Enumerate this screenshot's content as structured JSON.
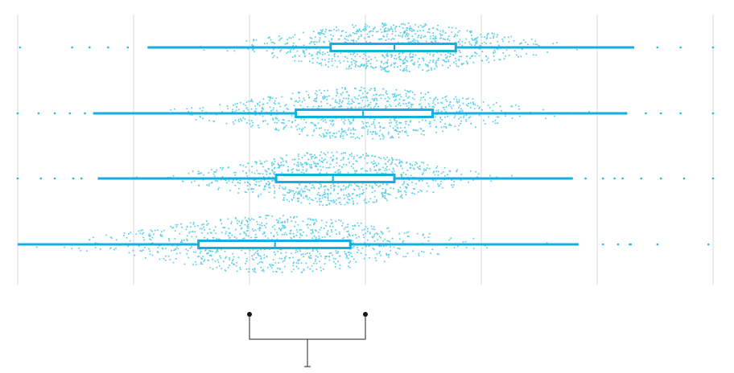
{
  "chart_data": {
    "type": "box-violin",
    "orientation": "horizontal",
    "xlim": [
      0,
      6
    ],
    "gridlines_x": [
      0,
      1,
      2,
      3,
      4,
      5,
      6
    ],
    "tick_labels_shown": false,
    "grid": true,
    "legend": "none",
    "colors": {
      "series": "#14aee0",
      "points": "#5fd0e6",
      "grid": "#d8d8d8",
      "bracket": "#222222"
    },
    "series": [
      {
        "whisker_low": 1.12,
        "q1": 2.7,
        "median": 3.25,
        "q3": 3.78,
        "whisker_high": 5.32,
        "outliers": [
          0.02,
          0.47,
          0.62,
          0.78,
          0.95,
          5.52,
          5.72,
          6.0
        ],
        "density_width": 0.26
      },
      {
        "whisker_low": 0.65,
        "q1": 2.4,
        "median": 2.98,
        "q3": 3.58,
        "whisker_high": 5.26,
        "outliers": [
          0.0,
          0.18,
          0.32,
          0.45,
          0.58,
          5.42,
          5.55,
          5.72,
          6.0
        ],
        "density_width": 0.27
      },
      {
        "whisker_low": 0.69,
        "q1": 2.23,
        "median": 2.72,
        "q3": 3.25,
        "whisker_high": 4.79,
        "outliers": [
          0.0,
          0.2,
          0.32,
          0.48,
          0.55,
          4.9,
          5.05,
          5.15,
          5.22,
          5.38,
          5.55,
          5.75,
          6.0
        ],
        "density_width": 0.28
      },
      {
        "whisker_low": 0.0,
        "q1": 1.56,
        "median": 2.22,
        "q3": 2.87,
        "whisker_high": 4.84,
        "outliers": [
          5.05,
          5.18,
          5.28,
          5.29,
          5.52,
          5.96
        ],
        "density_width": 0.3
      }
    ],
    "bracket": {
      "from": 2.0,
      "to": 3.0
    }
  }
}
